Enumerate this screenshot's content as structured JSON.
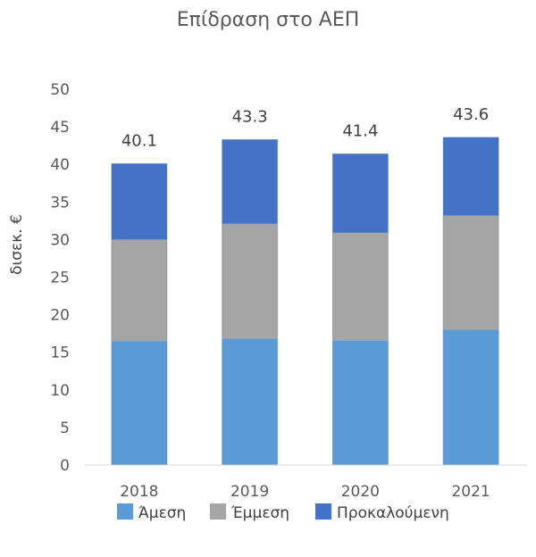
{
  "chart_data": {
    "type": "bar",
    "stacked": true,
    "title": "Επίδραση στο ΑΕΠ",
    "xlabel": "",
    "ylabel": "δισεκ. €",
    "ylim": [
      0,
      50
    ],
    "yticks": [
      0,
      5,
      10,
      15,
      20,
      25,
      30,
      35,
      40,
      45,
      50
    ],
    "grid": false,
    "legend_position": "bottom",
    "categories": [
      "2018",
      "2019",
      "2020",
      "2021"
    ],
    "series": [
      {
        "name": "Άμεση",
        "color": "#5B9BD5",
        "values": [
          16.5,
          16.8,
          16.6,
          18.0
        ]
      },
      {
        "name": "Έμμεση",
        "color": "#A5A5A5",
        "values": [
          13.5,
          15.3,
          14.3,
          15.2
        ]
      },
      {
        "name": "Προκαλούμενη",
        "color": "#4472C4",
        "values": [
          10.1,
          11.2,
          10.5,
          10.4
        ]
      }
    ],
    "totals": [
      "40.1",
      "43.3",
      "41.4",
      "43.6"
    ]
  }
}
